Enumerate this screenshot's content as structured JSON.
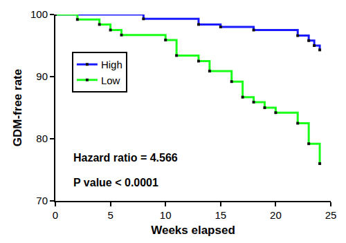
{
  "chart_data": {
    "type": "step",
    "xlabel": "Weeks elapsed",
    "ylabel": "GDM-free rate",
    "series": [
      {
        "name": "High",
        "color": "#1a1aff",
        "x": [
          0,
          8,
          13,
          15,
          18,
          22,
          23,
          23.5,
          24
        ],
        "values": [
          100,
          99.3,
          98.4,
          98,
          97.5,
          96.6,
          95.8,
          95,
          94.3
        ]
      },
      {
        "name": "Low",
        "color": "#1aff1a",
        "x": [
          0,
          2,
          4,
          5,
          6,
          10,
          11,
          13,
          14,
          16,
          17,
          18,
          19,
          20,
          22,
          23,
          24
        ],
        "values": [
          100,
          99.2,
          98.4,
          97.5,
          96.7,
          95.9,
          93.4,
          92.5,
          90.9,
          89.2,
          86.7,
          85.9,
          85,
          84.2,
          82.5,
          79.2,
          76
        ]
      }
    ],
    "annotations": [
      "Hazard ratio = 4.566",
      "P value < 0.0001"
    ],
    "xlim": [
      0,
      25
    ],
    "xticks": [
      0,
      5,
      10,
      15,
      20,
      25
    ],
    "ylim": [
      70,
      100
    ],
    "yticks": [
      70,
      80,
      90,
      100
    ],
    "grid": false,
    "legend": "upper left",
    "marker": "square"
  }
}
